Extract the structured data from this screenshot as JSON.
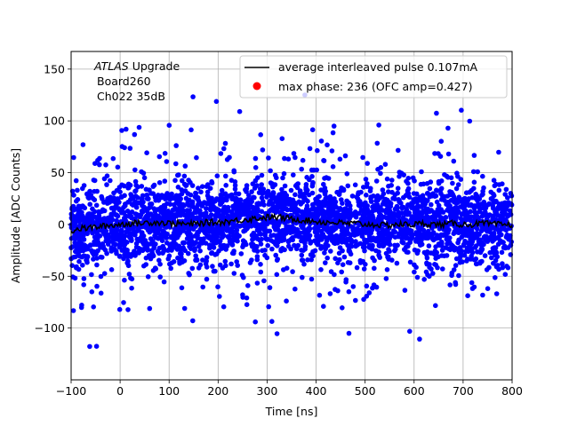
{
  "chart_data": {
    "type": "scatter",
    "xlabel": "Time [ns]",
    "ylabel": "Amplitude [ADC Counts]",
    "xlim": [
      -100,
      800
    ],
    "ylim": [
      -150,
      167
    ],
    "x_ticks": [
      -100,
      0,
      100,
      200,
      300,
      400,
      500,
      600,
      700,
      800
    ],
    "y_ticks": [
      -100,
      -50,
      0,
      50,
      100,
      150
    ],
    "x_tick_labels": [
      "−100",
      "0",
      "100",
      "200",
      "300",
      "400",
      "500",
      "600",
      "700",
      "800"
    ],
    "y_tick_labels": [
      "−100",
      "−50",
      "0",
      "50",
      "100",
      "150"
    ],
    "grid": true,
    "annotation": {
      "italic": "ATLAS",
      "rest": " Upgrade",
      "line2": "Board260",
      "line3": "Ch022 35dB"
    },
    "legend": {
      "placement": "top-right",
      "entries": [
        {
          "label": "average interleaved pulse 0.107mA",
          "marker": "line",
          "color": "#000000"
        },
        {
          "label": "max phase: 236 (OFC amp=0.427)",
          "marker": "dot",
          "color": "#ff0000"
        }
      ]
    },
    "series": [
      {
        "name": "average interleaved pulse 0.107mA",
        "kind": "line",
        "color": "#000000",
        "x": [
          -100,
          -80,
          -60,
          -40,
          -20,
          0,
          20,
          40,
          60,
          80,
          100,
          120,
          140,
          160,
          180,
          200,
          220,
          240,
          260,
          280,
          300,
          320,
          340,
          360,
          380,
          400,
          420,
          440,
          460,
          480,
          500,
          520,
          540,
          560,
          580,
          600,
          620,
          640,
          660,
          680,
          700,
          720,
          740,
          760,
          780,
          800
        ],
        "y": [
          -6,
          -4,
          -3,
          -2,
          -1,
          0,
          1,
          1,
          2,
          2,
          1,
          1,
          0,
          1,
          2,
          2,
          3,
          4,
          5,
          6,
          7,
          7,
          6,
          5,
          4,
          3,
          2,
          2,
          1,
          1,
          0,
          0,
          -1,
          0,
          0,
          0,
          1,
          0,
          0,
          1,
          0,
          0,
          1,
          0,
          0,
          0
        ]
      },
      {
        "name": "samples",
        "kind": "scatter",
        "color": "#0000ff",
        "n_points": 3400,
        "y_core_sigma": 18,
        "y_range": [
          -126,
          125
        ]
      },
      {
        "name": "max phase: 236 (OFC amp=0.427)",
        "kind": "scatter",
        "color": "#ff0000",
        "x": [],
        "y": []
      }
    ]
  }
}
